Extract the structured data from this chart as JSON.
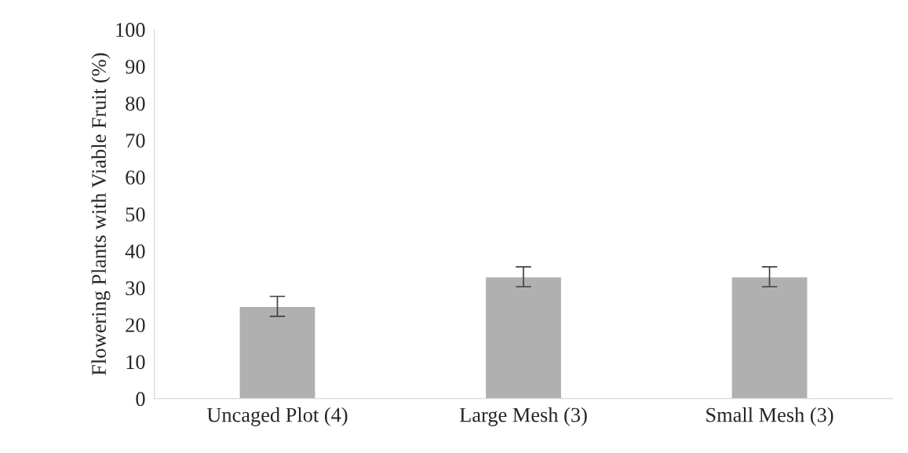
{
  "chart_data": {
    "type": "bar",
    "ylabel": "Flowering Plants with Viable Fruit (%)",
    "categories": [
      "Uncaged Plot (4)",
      "Large Mesh (3)",
      "Small Mesh (3)"
    ],
    "values": [
      25,
      33,
      33
    ],
    "errors": [
      2.7,
      2.7,
      2.7
    ],
    "color": "#b0b0b0",
    "ylim": [
      0,
      100
    ],
    "yticks": [
      0,
      10,
      20,
      30,
      40,
      50,
      60,
      70,
      80,
      90,
      100
    ],
    "grid": false,
    "legend": false
  }
}
